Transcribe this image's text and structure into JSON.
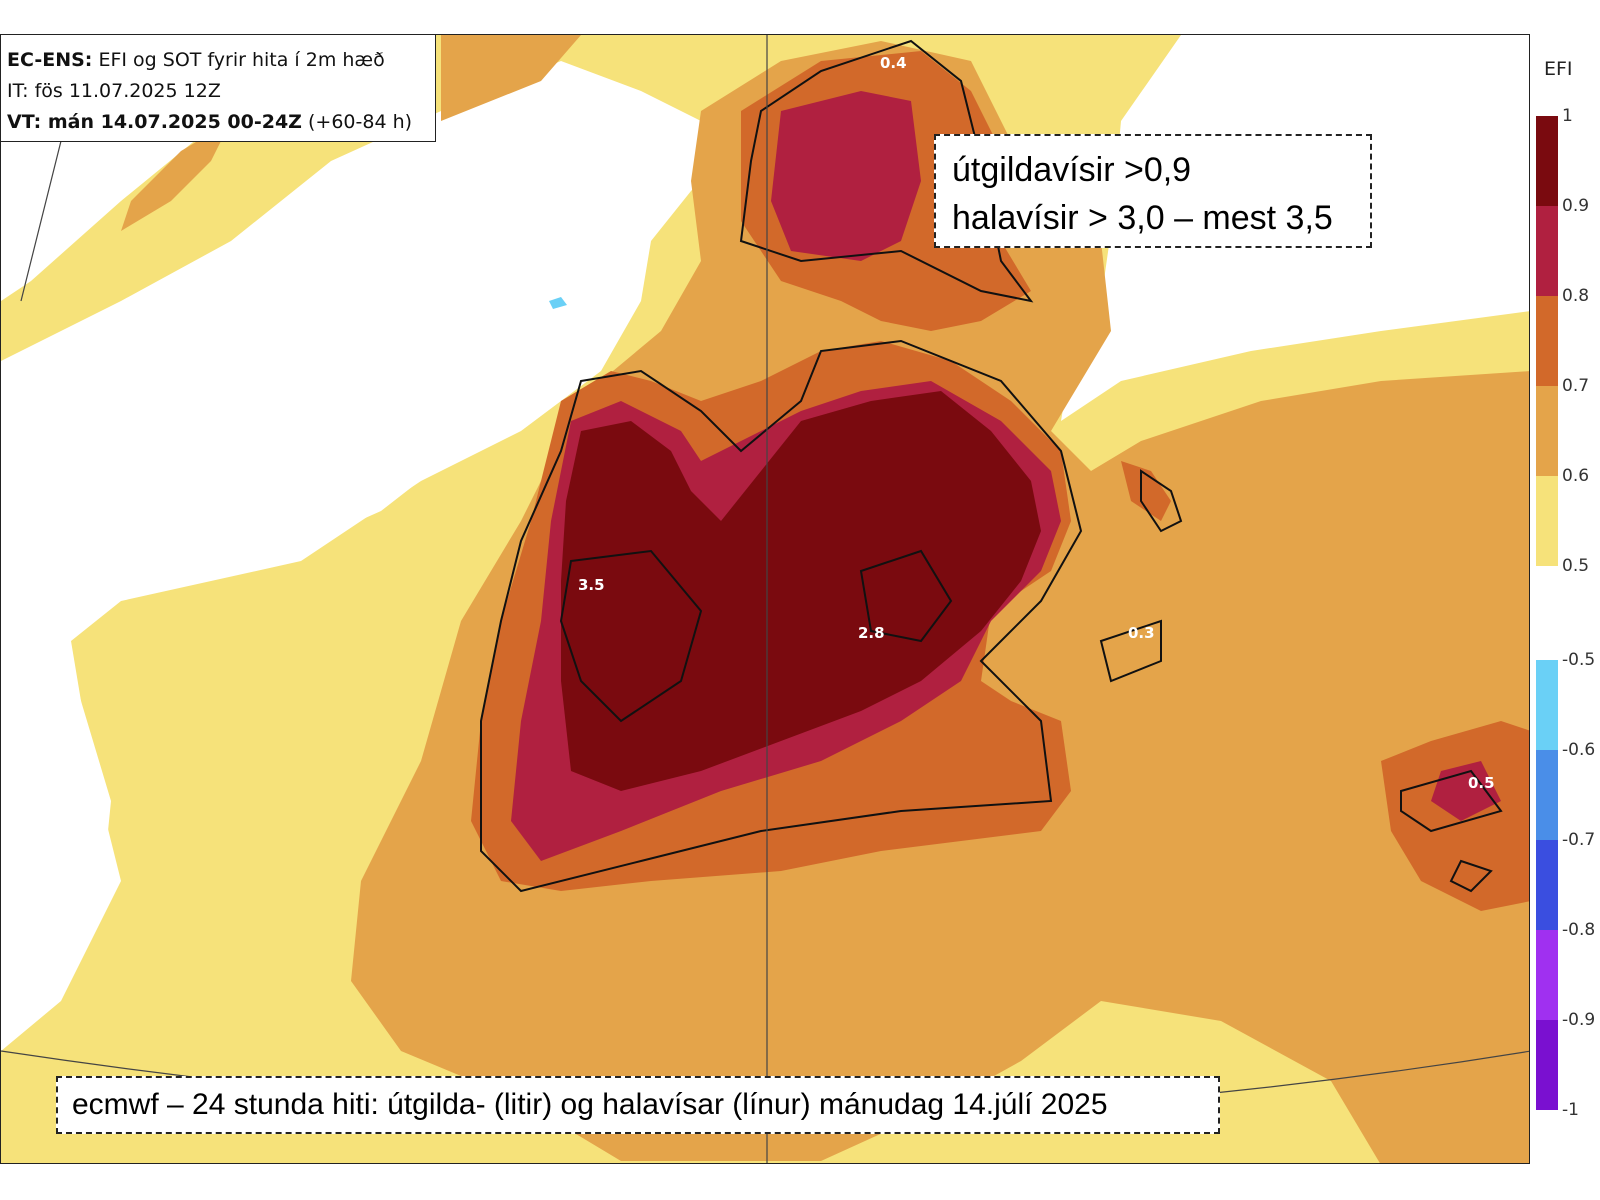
{
  "info": {
    "line1_bold": "EC-ENS:",
    "line1_rest": " EFI og SOT fyrir hita í 2m hæð",
    "line2": "IT: fös 11.07.2025 12Z",
    "line3_bold": "VT: mán 14.07.2025 00-24Z",
    "line3_rest": " (+60-84 h)"
  },
  "callout": {
    "line1": "útgildavísir >0,9",
    "line2": "halavísir > 3,0 – mest 3,5"
  },
  "caption": "ecmwf – 24 stunda hiti: útgilda- (litir) og halavísar (línur) mánudag 14.júlí 2025",
  "legend": {
    "title": "EFI",
    "positive": [
      {
        "label": "1",
        "color": "#7a0a0f"
      },
      {
        "label": "0.9",
        "color": "#b02040"
      },
      {
        "label": "0.8",
        "color": "#d2692a"
      },
      {
        "label": "0.7",
        "color": "#e4a44a"
      },
      {
        "label": "0.6",
        "color": "#f6e27a"
      },
      {
        "label": "0.5",
        "color": ""
      }
    ],
    "negative": [
      {
        "label": "-0.5",
        "color": "#6ad0f6"
      },
      {
        "label": "-0.6",
        "color": "#4a8ee8"
      },
      {
        "label": "-0.7",
        "color": "#3a4ee0"
      },
      {
        "label": "-0.8",
        "color": "#a030f0"
      },
      {
        "label": "-0.9",
        "color": "#7a10d0"
      },
      {
        "label": "-1",
        "color": ""
      }
    ]
  },
  "sot_labels": {
    "a": "0.4",
    "b": "3.5",
    "c": "2.8",
    "d": "0.3",
    "e": "0.5"
  },
  "colors": {
    "efi_05": "#f6e27a",
    "efi_06": "#e4a44a",
    "efi_07": "#d2692a",
    "efi_08": "#b02040",
    "efi_09": "#7a0a0f",
    "negative_05": "#6ad0f6"
  }
}
